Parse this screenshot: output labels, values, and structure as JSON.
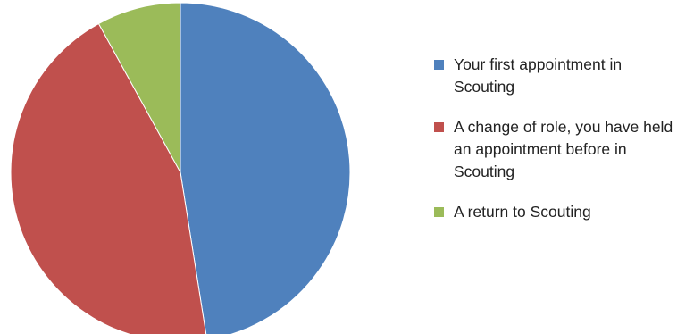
{
  "chart_data": {
    "type": "pie",
    "title": "",
    "series": [
      {
        "values": [
          47.5,
          44.5,
          8.0
        ],
        "colors": [
          "#4F81BD",
          "#C0504D",
          "#9BBB59"
        ]
      }
    ],
    "categories": [
      "Your first appointment in Scouting",
      "A change of role, you have held an appointment before in Scouting",
      "A return to Scouting"
    ],
    "start_angle_deg": 0,
    "direction": "clockwise",
    "legend_position": "right",
    "data_labels": false
  },
  "legend": {
    "items": [
      {
        "label": "Your first appointment in Scouting",
        "color": "#4F81BD"
      },
      {
        "label": "A change of role, you have held an appointment before in Scouting",
        "color": "#C0504D"
      },
      {
        "label": "A return to Scouting",
        "color": "#9BBB59"
      }
    ]
  }
}
